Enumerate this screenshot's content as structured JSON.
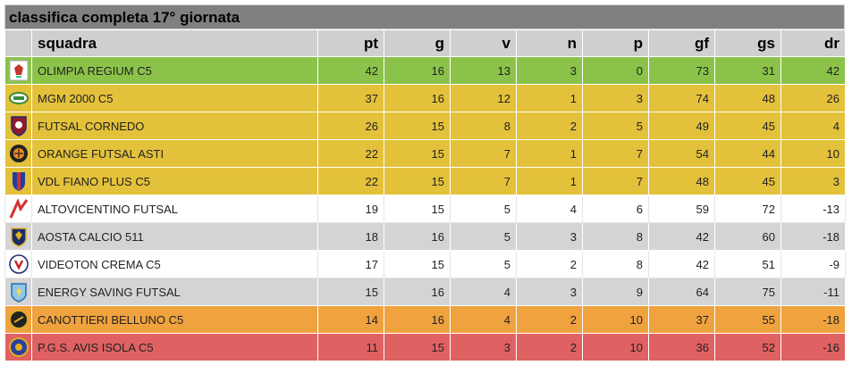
{
  "title": "classifica completa 17° giornata",
  "headers": [
    "squadra",
    "pt",
    "g",
    "v",
    "n",
    "p",
    "gf",
    "gs",
    "dr"
  ],
  "colors": {
    "green": "#8bc34a",
    "yellow": "#e3c13b",
    "white": "#ffffff",
    "grey": "#d4d4d4",
    "orange": "#f0a23e",
    "red": "#df6161"
  },
  "rows": [
    {
      "team": "OLIMPIA REGIUM C5",
      "pt": "42",
      "g": "16",
      "v": "13",
      "n": "3",
      "p": "0",
      "gf": "73",
      "gs": "31",
      "dr": "42",
      "logo": "olimpia-regium-logo",
      "band": "green"
    },
    {
      "team": "MGM 2000 C5",
      "pt": "37",
      "g": "16",
      "v": "12",
      "n": "1",
      "p": "3",
      "gf": "74",
      "gs": "48",
      "dr": "26",
      "logo": "mgm-2000-logo",
      "band": "yellow"
    },
    {
      "team": "FUTSAL CORNEDO",
      "pt": "26",
      "g": "15",
      "v": "8",
      "n": "2",
      "p": "5",
      "gf": "49",
      "gs": "45",
      "dr": "4",
      "logo": "futsal-cornedo-logo",
      "band": "yellow"
    },
    {
      "team": "ORANGE FUTSAL ASTI",
      "pt": "22",
      "g": "15",
      "v": "7",
      "n": "1",
      "p": "7",
      "gf": "54",
      "gs": "44",
      "dr": "10",
      "logo": "orange-futsal-asti-logo",
      "band": "yellow"
    },
    {
      "team": "VDL FIANO PLUS C5",
      "pt": "22",
      "g": "15",
      "v": "7",
      "n": "1",
      "p": "7",
      "gf": "48",
      "gs": "45",
      "dr": "3",
      "logo": "vdl-fiano-plus-logo",
      "band": "yellow"
    },
    {
      "team": "ALTOVICENTINO FUTSAL",
      "pt": "19",
      "g": "15",
      "v": "5",
      "n": "4",
      "p": "6",
      "gf": "59",
      "gs": "72",
      "dr": "-13",
      "logo": "altovicentino-logo",
      "band": "white"
    },
    {
      "team": "AOSTA CALCIO 511",
      "pt": "18",
      "g": "16",
      "v": "5",
      "n": "3",
      "p": "8",
      "gf": "42",
      "gs": "60",
      "dr": "-18",
      "logo": "aosta-calcio-logo",
      "band": "grey"
    },
    {
      "team": "VIDEOTON CREMA C5",
      "pt": "17",
      "g": "15",
      "v": "5",
      "n": "2",
      "p": "8",
      "gf": "42",
      "gs": "51",
      "dr": "-9",
      "logo": "videoton-crema-logo",
      "band": "white"
    },
    {
      "team": "ENERGY SAVING FUTSAL",
      "pt": "15",
      "g": "16",
      "v": "4",
      "n": "3",
      "p": "9",
      "gf": "64",
      "gs": "75",
      "dr": "-11",
      "logo": "energy-saving-logo",
      "band": "grey"
    },
    {
      "team": "CANOTTIERI BELLUNO C5",
      "pt": "14",
      "g": "16",
      "v": "4",
      "n": "2",
      "p": "10",
      "gf": "37",
      "gs": "55",
      "dr": "-18",
      "logo": "canottieri-belluno-logo",
      "band": "orange"
    },
    {
      "team": "P.G.S. AVIS ISOLA C5",
      "pt": "11",
      "g": "15",
      "v": "3",
      "n": "2",
      "p": "10",
      "gf": "36",
      "gs": "52",
      "dr": "-16",
      "logo": "pgs-avis-isola-logo",
      "band": "red"
    }
  ]
}
